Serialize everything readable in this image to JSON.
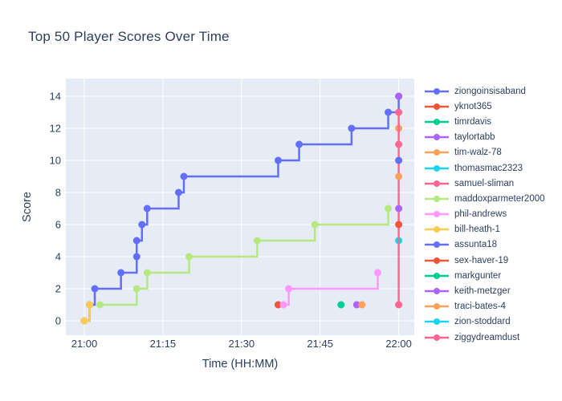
{
  "chart_data": {
    "type": "line",
    "line_shape": "hv-step",
    "title": "Top 50 Player Scores Over Time",
    "xlabel": "Time (HH:MM)",
    "ylabel": "Score",
    "x_tick_labels": [
      "21:00",
      "21:15",
      "21:30",
      "21:45",
      "22:00"
    ],
    "x_tick_minutes": [
      0,
      15,
      30,
      45,
      60
    ],
    "y_ticks": [
      0,
      2,
      4,
      6,
      8,
      10,
      12,
      14
    ],
    "x_axis_range": [
      "20:57",
      "22:03"
    ],
    "y_axis_range": [
      -0.9,
      15.1
    ],
    "grid": true,
    "legend_position": "right",
    "plot_bg_color": "#E5ECF6",
    "grid_color": "#FFFFFF",
    "text_color": "#2a3f5f",
    "series": [
      {
        "name": "ziongoinsisaband",
        "color": "#636EFA",
        "points": [
          {
            "t": "21:00",
            "s": 0
          },
          {
            "t": "21:01",
            "s": 1
          },
          {
            "t": "21:02",
            "s": 2
          },
          {
            "t": "21:07",
            "s": 3
          },
          {
            "t": "21:10",
            "s": 4
          },
          {
            "t": "21:10",
            "s": 5
          },
          {
            "t": "21:11",
            "s": 6
          },
          {
            "t": "21:12",
            "s": 7
          },
          {
            "t": "21:18",
            "s": 8
          },
          {
            "t": "21:19",
            "s": 9
          },
          {
            "t": "21:37",
            "s": 10
          },
          {
            "t": "21:41",
            "s": 11
          },
          {
            "t": "21:51",
            "s": 12
          },
          {
            "t": "21:58",
            "s": 13
          },
          {
            "t": "22:00",
            "s": 14
          }
        ]
      },
      {
        "name": "yknot365",
        "color": "#EF553B",
        "points": [
          {
            "t": "21:37",
            "s": 1
          }
        ]
      },
      {
        "name": "timrdavis",
        "color": "#00CC96",
        "points": [
          {
            "t": "21:49",
            "s": 1
          }
        ]
      },
      {
        "name": "taylortabb",
        "color": "#AB63FA",
        "points": [
          {
            "t": "22:00",
            "s": 14
          }
        ]
      },
      {
        "name": "tim-walz-78",
        "color": "#FFA15A",
        "points": [
          {
            "t": "22:00",
            "s": 12
          }
        ]
      },
      {
        "name": "thomasmac2323",
        "color": "#19D3F3",
        "points": [
          {
            "t": "22:00",
            "s": 5
          }
        ]
      },
      {
        "name": "samuel-sliman",
        "color": "#FF6692",
        "points": [
          {
            "t": "22:00",
            "s": 1
          },
          {
            "t": "22:00",
            "s": 13
          }
        ]
      },
      {
        "name": "maddoxparmeter2000",
        "color": "#B6E880",
        "points": [
          {
            "t": "21:03",
            "s": 1
          },
          {
            "t": "21:10",
            "s": 2
          },
          {
            "t": "21:12",
            "s": 3
          },
          {
            "t": "21:20",
            "s": 4
          },
          {
            "t": "21:33",
            "s": 5
          },
          {
            "t": "21:44",
            "s": 6
          },
          {
            "t": "21:58",
            "s": 7
          }
        ]
      },
      {
        "name": "phil-andrews",
        "color": "#FF97FF",
        "points": [
          {
            "t": "21:38",
            "s": 1
          },
          {
            "t": "21:39",
            "s": 2
          },
          {
            "t": "21:56",
            "s": 3
          }
        ]
      },
      {
        "name": "bill-heath-1",
        "color": "#FECB52",
        "points": [
          {
            "t": "21:00",
            "s": 0
          },
          {
            "t": "21:01",
            "s": 1
          }
        ]
      },
      {
        "name": "assunta18",
        "color": "#636EFA",
        "points": [
          {
            "t": "22:00",
            "s": 10
          }
        ]
      },
      {
        "name": "sex-haver-19",
        "color": "#EF553B",
        "points": [
          {
            "t": "22:00",
            "s": 6
          }
        ]
      },
      {
        "name": "markgunter",
        "color": "#00CC96",
        "points": []
      },
      {
        "name": "keith-metzger",
        "color": "#AB63FA",
        "points": [
          {
            "t": "21:52",
            "s": 1
          }
        ]
      },
      {
        "name": "traci-bates-4",
        "color": "#FFA15A",
        "points": [
          {
            "t": "21:53",
            "s": 1
          }
        ]
      },
      {
        "name": "zion-stoddard",
        "color": "#19D3F3",
        "points": []
      },
      {
        "name": "ziggydreamdust",
        "color": "#FF6692",
        "points": [
          {
            "t": "22:00",
            "s": 11
          }
        ]
      }
    ],
    "additional_markers": [
      {
        "t": "22:00",
        "s": 9,
        "color": "#FFA15A"
      },
      {
        "t": "22:00",
        "s": 7,
        "color": "#AB63FA"
      }
    ]
  }
}
